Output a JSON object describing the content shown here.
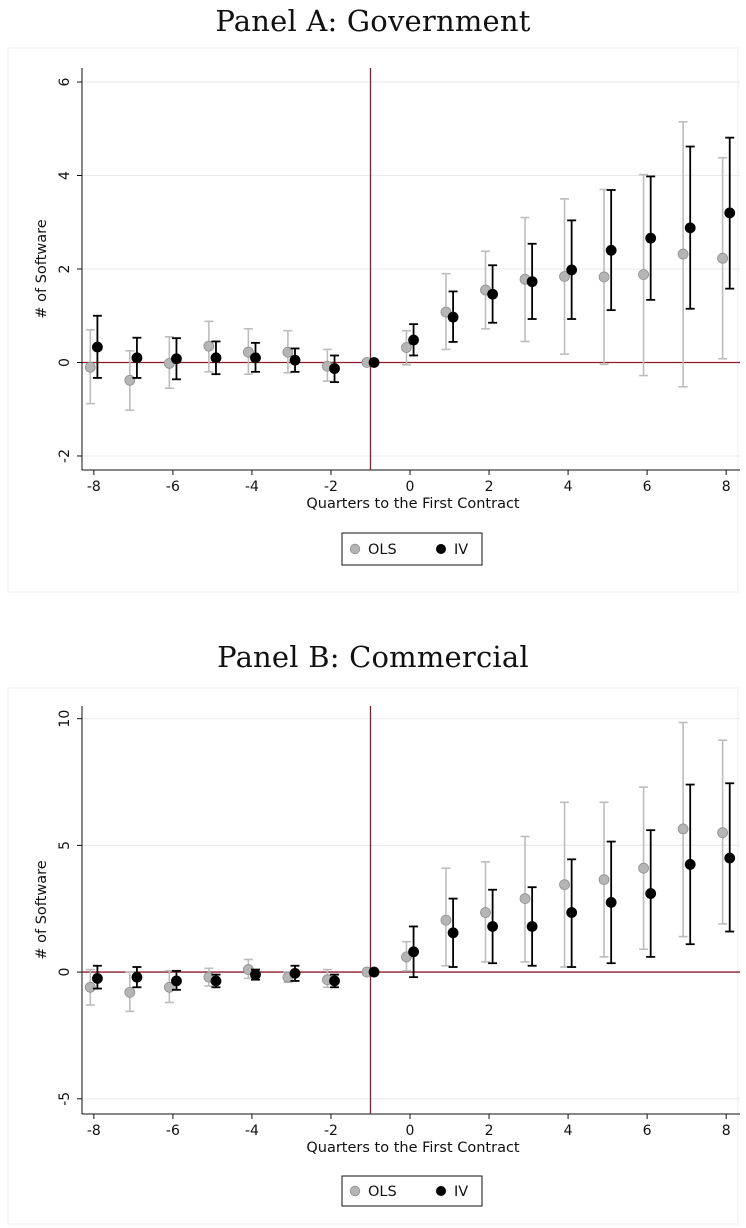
{
  "chart_data": [
    {
      "type": "scatter",
      "title": "Panel A: Government",
      "xlabel": "Quarters to the First Contract",
      "ylabel": "# of Software",
      "xlim": [
        -8.3,
        8.35
      ],
      "ylim": [
        -2.3,
        6.3
      ],
      "xticks": [
        -8,
        -6,
        -4,
        -2,
        0,
        2,
        4,
        6,
        8
      ],
      "yticks": [
        -2,
        0,
        2,
        4,
        6
      ],
      "grid": true,
      "vline_x": -1,
      "hline_y": 0,
      "legend": "bottom-center",
      "x": [
        -8,
        -7,
        -6,
        -5,
        -4,
        -3,
        -2,
        -1,
        0,
        1,
        2,
        3,
        4,
        5,
        6,
        7,
        8
      ],
      "series": [
        {
          "name": "OLS",
          "color": "#b5b5b5",
          "values": [
            -0.1,
            -0.38,
            -0.02,
            0.35,
            0.22,
            0.22,
            -0.08,
            0.0,
            0.32,
            1.08,
            1.55,
            1.78,
            1.84,
            1.83,
            1.88,
            2.32,
            2.23
          ],
          "lower": [
            -0.88,
            -1.02,
            -0.55,
            -0.2,
            -0.25,
            -0.22,
            -0.4,
            0.0,
            -0.05,
            0.28,
            0.72,
            0.45,
            0.18,
            -0.04,
            -0.28,
            -0.52,
            0.08
          ],
          "upper": [
            0.7,
            0.25,
            0.55,
            0.88,
            0.72,
            0.68,
            0.28,
            0.0,
            0.68,
            1.9,
            2.38,
            3.1,
            3.5,
            3.7,
            4.02,
            5.15,
            4.38
          ]
        },
        {
          "name": "IV",
          "color": "#000000",
          "values": [
            0.33,
            0.1,
            0.08,
            0.1,
            0.1,
            0.05,
            -0.13,
            0.0,
            0.48,
            0.97,
            1.46,
            1.73,
            1.98,
            2.4,
            2.66,
            2.88,
            3.2
          ],
          "lower": [
            -0.33,
            -0.33,
            -0.36,
            -0.25,
            -0.2,
            -0.2,
            -0.42,
            0.0,
            0.15,
            0.44,
            0.85,
            0.93,
            0.93,
            1.12,
            1.34,
            1.15,
            1.58
          ],
          "upper": [
            1.0,
            0.53,
            0.52,
            0.45,
            0.42,
            0.3,
            0.15,
            0.0,
            0.82,
            1.52,
            2.08,
            2.54,
            3.04,
            3.69,
            3.98,
            4.62,
            4.81
          ]
        }
      ]
    },
    {
      "type": "scatter",
      "title": "Panel B: Commercial",
      "xlabel": "Quarters to the First Contract",
      "ylabel": "# of Software",
      "xlim": [
        -8.3,
        8.35
      ],
      "ylim": [
        -5.6,
        10.5
      ],
      "xticks": [
        -8,
        -6,
        -4,
        -2,
        0,
        2,
        4,
        6,
        8
      ],
      "yticks": [
        -5,
        0,
        5,
        10
      ],
      "grid": true,
      "vline_x": -1,
      "hline_y": 0,
      "legend": "bottom-center",
      "x": [
        -8,
        -7,
        -6,
        -5,
        -4,
        -3,
        -2,
        -1,
        0,
        1,
        2,
        3,
        4,
        5,
        6,
        7,
        8
      ],
      "series": [
        {
          "name": "OLS",
          "color": "#b5b5b5",
          "values": [
            -0.6,
            -0.8,
            -0.6,
            -0.2,
            0.1,
            -0.2,
            -0.3,
            0.0,
            0.6,
            2.05,
            2.35,
            2.9,
            3.45,
            3.65,
            4.1,
            5.65,
            5.5
          ],
          "lower": [
            -1.3,
            -1.55,
            -1.2,
            -0.55,
            -0.25,
            -0.4,
            -0.6,
            0.0,
            0.05,
            0.25,
            0.4,
            0.4,
            0.2,
            0.6,
            0.9,
            1.4,
            1.9
          ],
          "upper": [
            0.1,
            0.0,
            0.05,
            0.15,
            0.5,
            0.0,
            0.1,
            0.0,
            1.2,
            4.1,
            4.35,
            5.35,
            6.7,
            6.7,
            7.3,
            9.85,
            9.15
          ]
        },
        {
          "name": "IV",
          "color": "#000000",
          "values": [
            -0.25,
            -0.2,
            -0.35,
            -0.35,
            -0.1,
            -0.05,
            -0.35,
            0.0,
            0.8,
            1.55,
            1.8,
            1.8,
            2.35,
            2.75,
            3.1,
            4.25,
            4.5
          ],
          "lower": [
            -0.65,
            -0.6,
            -0.7,
            -0.6,
            -0.3,
            -0.35,
            -0.6,
            0.0,
            -0.2,
            0.2,
            0.35,
            0.25,
            0.2,
            0.35,
            0.6,
            1.1,
            1.6
          ],
          "upper": [
            0.25,
            0.2,
            0.05,
            -0.1,
            0.1,
            0.25,
            -0.1,
            0.0,
            1.8,
            2.9,
            3.25,
            3.35,
            4.45,
            5.15,
            5.6,
            7.4,
            7.45
          ]
        }
      ]
    }
  ]
}
